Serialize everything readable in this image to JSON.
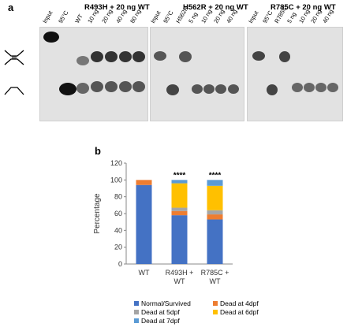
{
  "panel_a": {
    "letter": "a",
    "gels": [
      {
        "title": "",
        "lanes": [
          "Input",
          "95°C",
          "WT"
        ]
      },
      {
        "title": "R493H + 20 ng WT",
        "lanes": [
          "10 ng",
          "20 ng",
          "40 ng",
          "80 ng"
        ]
      },
      {
        "title": "H562R + 20 ng WT",
        "lanes": [
          "Input",
          "95°C",
          "H562R",
          "5 ng",
          "10 ng",
          "20 ng",
          "40 ng"
        ]
      },
      {
        "title": "R785C + 20 ng WT",
        "lanes": [
          "Input",
          "95°C",
          "R785C",
          "5 ng",
          "10 ng",
          "20 ng",
          "40 ng"
        ]
      }
    ],
    "icons": [
      "holliday-junction-icon",
      "single-strand-fork-icon"
    ]
  },
  "panel_b": {
    "letter": "b",
    "significance": [
      "****",
      "****"
    ],
    "legend": [
      {
        "label": "Normal/Survived",
        "color": "#4472c4"
      },
      {
        "label": "Dead at 4dpf",
        "color": "#ed7d31"
      },
      {
        "label": "Dead at 5dpf",
        "color": "#a5a5a5"
      },
      {
        "label": "Dead at 6dpf",
        "color": "#ffc000"
      },
      {
        "label": "Dead at 7dpf",
        "color": "#5b9bd5"
      }
    ]
  },
  "chart_data": {
    "type": "bar",
    "stacked": true,
    "categories": [
      "WT",
      "R493H + WT",
      "R785C + WT"
    ],
    "series": [
      {
        "name": "Normal/Survived",
        "values": [
          94,
          58,
          53
        ]
      },
      {
        "name": "Dead at 4dpf",
        "values": [
          6,
          5,
          6
        ]
      },
      {
        "name": "Dead at 5dpf",
        "values": [
          0,
          4,
          5
        ]
      },
      {
        "name": "Dead at 6dpf",
        "values": [
          0,
          29,
          29
        ]
      },
      {
        "name": "Dead at 7dpf",
        "values": [
          0,
          4,
          7
        ]
      }
    ],
    "ylabel": "Percentage",
    "xlabel": "",
    "ylim": [
      0,
      120
    ],
    "yticks": [
      0,
      20,
      40,
      60,
      80,
      100,
      120
    ],
    "grid": false,
    "legend_position": "bottom"
  }
}
